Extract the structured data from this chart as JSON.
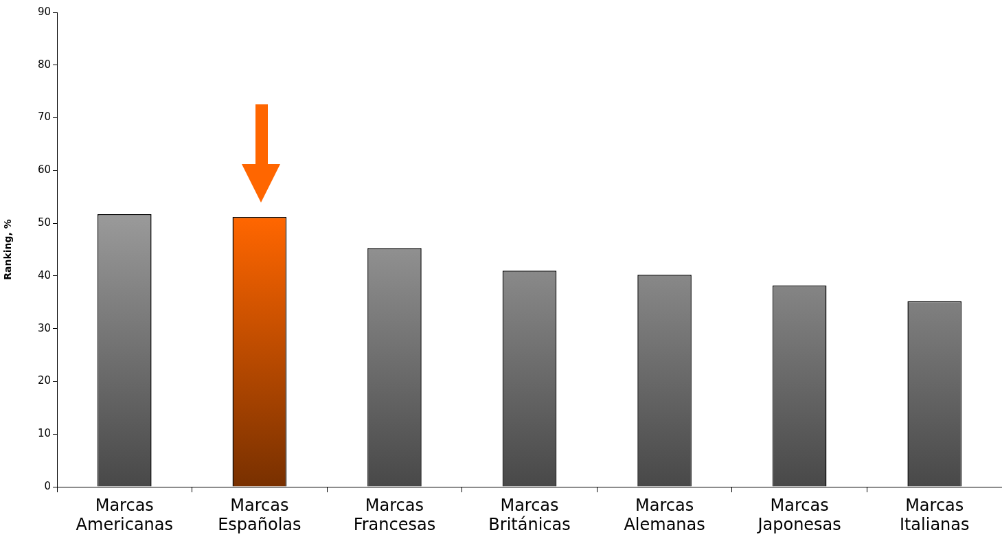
{
  "chart_data": {
    "type": "bar",
    "ylabel": "Ranking, %",
    "categories": [
      "Marcas Americanas",
      "Marcas Españolas",
      "Marcas Francesas",
      "Marcas Británicas",
      "Marcas Alemanas",
      "Marcas Japonesas",
      "Marcas Italianas"
    ],
    "values": [
      51.7,
      51.2,
      45.3,
      41.0,
      40.2,
      38.2,
      35.2
    ],
    "colors": [
      "#999999",
      "#ff6600",
      "#999999",
      "#999999",
      "#999999",
      "#999999",
      "#999999"
    ],
    "ylim": [
      0,
      90
    ],
    "yticks": [
      0,
      10,
      20,
      30,
      40,
      50,
      60,
      70,
      80,
      90
    ],
    "legend": false
  }
}
